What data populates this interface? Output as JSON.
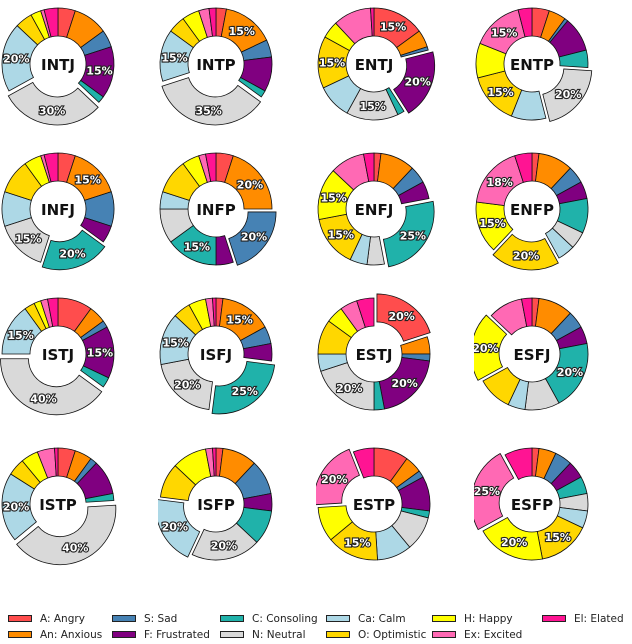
{
  "chart_data": {
    "type": "pie",
    "subtype": "donut",
    "order": [
      "A",
      "An",
      "S",
      "F",
      "C",
      "N",
      "Ca",
      "O",
      "H",
      "Ex",
      "El"
    ],
    "legend": [
      {
        "key": "A",
        "label": "A: Angry",
        "color": "#ff4d4d"
      },
      {
        "key": "An",
        "label": "An: Anxious",
        "color": "#ff8c00"
      },
      {
        "key": "S",
        "label": "S: Sad",
        "color": "#4682b4"
      },
      {
        "key": "F",
        "label": "F: Frustrated",
        "color": "#800080"
      },
      {
        "key": "C",
        "label": "C: Consoling",
        "color": "#20b2aa"
      },
      {
        "key": "N",
        "label": "N: Neutral",
        "color": "#d9d9d9"
      },
      {
        "key": "Ca",
        "label": "Ca: Calm",
        "color": "#add8e6"
      },
      {
        "key": "O",
        "label": "O: Optimistic",
        "color": "#ffd700"
      },
      {
        "key": "H",
        "label": "H: Happy",
        "color": "#ffff00"
      },
      {
        "key": "Ex",
        "label": "Ex: Excited",
        "color": "#ff69b4"
      },
      {
        "key": "El",
        "label": "El: Elated",
        "color": "#ff1493"
      }
    ],
    "legend_position": "bottom",
    "charts": [
      {
        "title": "INTJ",
        "values": [
          5,
          10,
          5,
          15,
          2,
          30,
          20,
          5,
          3,
          1,
          4
        ],
        "labels": {
          "F": "15%",
          "N": "30%",
          "Ca": "20%"
        },
        "explode": "N"
      },
      {
        "title": "INTP",
        "values": [
          3,
          15,
          5,
          10,
          2,
          35,
          15,
          5,
          5,
          3,
          2
        ],
        "labels": {
          "An": "15%",
          "N": "35%",
          "Ca": "15%"
        },
        "explode": "N"
      },
      {
        "title": "ENTJ",
        "values": [
          15,
          5,
          1,
          20,
          2,
          15,
          10,
          15,
          5,
          11,
          1
        ],
        "labels": {
          "A": "15%",
          "F": "20%",
          "N": "15%",
          "O": "15%"
        },
        "explode": "F"
      },
      {
        "title": "ENTP",
        "values": [
          5,
          5,
          1,
          10,
          5,
          20,
          10,
          15,
          10,
          15,
          4
        ],
        "labels": {
          "N": "20%",
          "O": "15%",
          "Ex": "15%"
        },
        "explode": "N"
      },
      {
        "title": "INFJ",
        "values": [
          5,
          15,
          10,
          5,
          20,
          15,
          10,
          10,
          5,
          1,
          4
        ],
        "labels": {
          "An": "15%",
          "C": "20%",
          "N": "15%"
        },
        "explode": "C"
      },
      {
        "title": "INFP",
        "values": [
          5,
          20,
          20,
          5,
          15,
          10,
          5,
          10,
          5,
          2,
          3
        ],
        "labels": {
          "An": "20%",
          "S": "20%",
          "C": "15%"
        },
        "explode": "S"
      },
      {
        "title": "ENFJ",
        "values": [
          2,
          10,
          5,
          5,
          25,
          5,
          5,
          15,
          15,
          10,
          3
        ],
        "labels": {
          "C": "25%",
          "O": "15%",
          "H": "15%"
        },
        "explode": "C"
      },
      {
        "title": "ENFP",
        "values": [
          2,
          10,
          5,
          5,
          10,
          5,
          5,
          20,
          15,
          18,
          5
        ],
        "labels": {
          "O": "20%",
          "H": "15%",
          "Ex": "18%"
        },
        "explode": "O"
      },
      {
        "title": "ISTJ",
        "values": [
          10,
          5,
          2,
          15,
          3,
          40,
          15,
          3,
          2,
          2,
          3
        ],
        "labels": {
          "F": "15%",
          "N": "40%",
          "Ca": "15%"
        },
        "explode": "N"
      },
      {
        "title": "ISFJ",
        "values": [
          2,
          15,
          5,
          5,
          25,
          20,
          15,
          5,
          5,
          2,
          1
        ],
        "labels": {
          "An": "15%",
          "C": "25%",
          "N": "20%",
          "Ca": "15%"
        },
        "explode": "C"
      },
      {
        "title": "ESTJ",
        "values": [
          20,
          5,
          2,
          20,
          3,
          20,
          5,
          10,
          5,
          5,
          5
        ],
        "labels": {
          "A": "20%",
          "F": "20%",
          "N": "20%"
        },
        "explode": "A"
      },
      {
        "title": "ESFJ",
        "values": [
          2,
          10,
          5,
          5,
          20,
          10,
          5,
          10,
          20,
          10,
          3
        ],
        "labels": {
          "C": "20%",
          "H": "20%"
        },
        "explode": "H"
      },
      {
        "title": "ISTP",
        "values": [
          5,
          5,
          2,
          10,
          2,
          40,
          20,
          5,
          5,
          5,
          1
        ],
        "labels": {
          "N": "40%",
          "Ca": "20%"
        },
        "explode": "N"
      },
      {
        "title": "ISFP",
        "values": [
          2,
          10,
          10,
          5,
          10,
          20,
          20,
          10,
          10,
          2,
          1
        ],
        "labels": {
          "N": "20%",
          "Ca": "20%"
        },
        "explode": "Ca"
      },
      {
        "title": "ESTP",
        "values": [
          10,
          5,
          2,
          10,
          2,
          10,
          10,
          15,
          10,
          20,
          6
        ],
        "labels": {
          "O": "15%",
          "Ex": "20%"
        },
        "explode": "Ex"
      },
      {
        "title": "ESFP",
        "values": [
          2,
          5,
          5,
          5,
          5,
          5,
          5,
          15,
          20,
          25,
          8
        ],
        "labels": {
          "O": "15%",
          "H": "20%",
          "Ex": "25%"
        },
        "explode": "Ex"
      }
    ]
  }
}
